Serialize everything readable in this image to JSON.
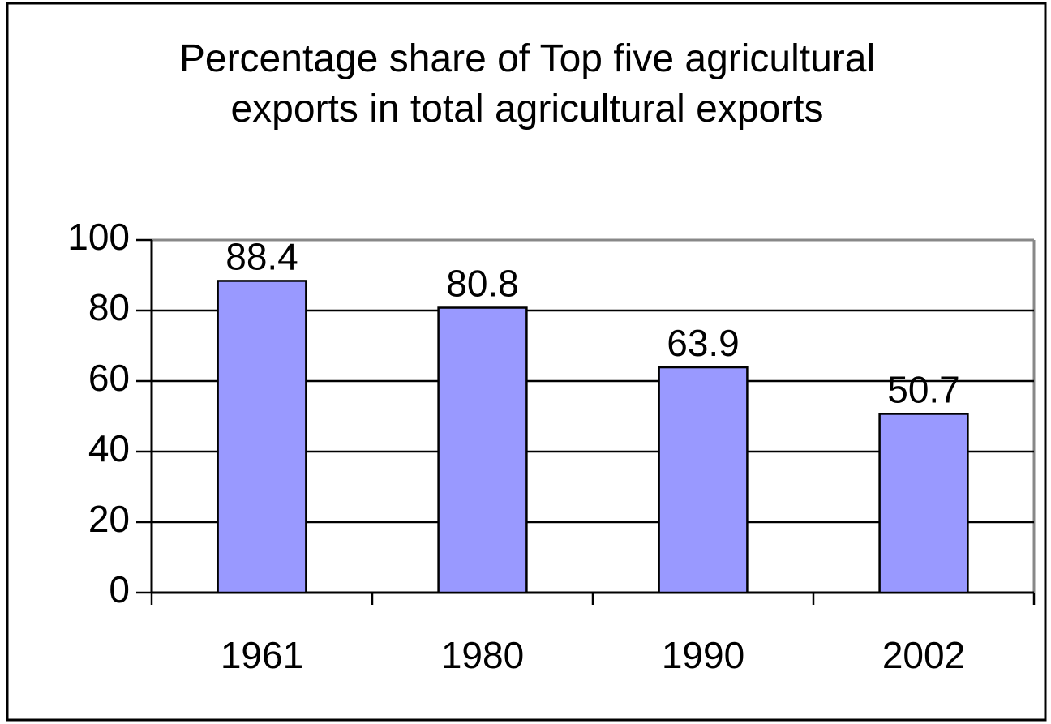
{
  "chart_data": {
    "type": "bar",
    "title": "Percentage share of Top five agricultural exports in total agricultural exports",
    "categories": [
      "1961",
      "1980",
      "1990",
      "2002"
    ],
    "values": [
      88.4,
      80.8,
      63.9,
      50.7
    ],
    "color": "#9999ff",
    "ylim": [
      0,
      100
    ],
    "yticks": [
      0,
      20,
      40,
      60,
      80,
      100
    ],
    "grid": true
  }
}
